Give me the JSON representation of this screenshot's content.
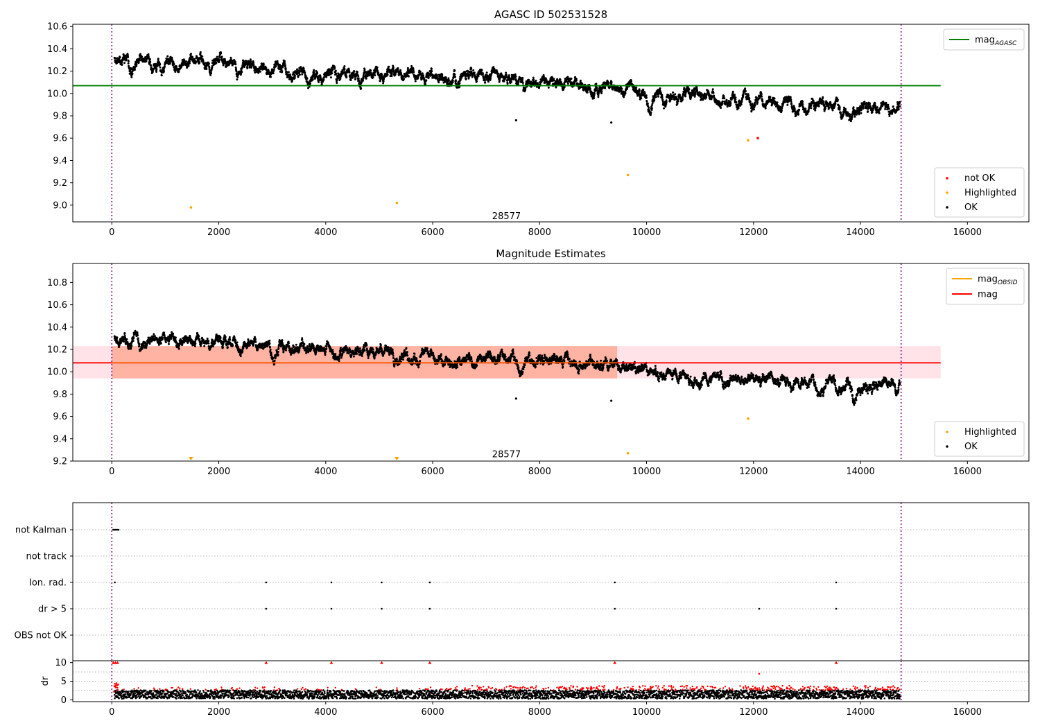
{
  "chart_data": [
    {
      "type": "scatter",
      "title": "AGASC ID 502531528",
      "xlim": [
        -730,
        17150
      ],
      "ylim": [
        8.85,
        10.62
      ],
      "xticks": [
        0,
        2000,
        4000,
        6000,
        8000,
        10000,
        12000,
        14000,
        16000
      ],
      "yticks": [
        9.0,
        9.2,
        9.4,
        9.6,
        9.8,
        10.0,
        10.2,
        10.4,
        10.6
      ],
      "hlines": [
        {
          "name": "mag_AGASC",
          "label_main": "mag",
          "label_sub": "AGASC",
          "y": 10.07,
          "x": [
            -730,
            15500
          ],
          "color": "#008000"
        }
      ],
      "vlines": [
        0,
        14760
      ],
      "annotations": [
        {
          "text": "28577",
          "x": 7380,
          "y": 8.9
        }
      ],
      "legend_upper": {
        "position": "upper right",
        "entries": [
          {
            "label": "mag",
            "sub": "AGASC",
            "color": "#008000",
            "kind": "line"
          }
        ]
      },
      "legend_lower": {
        "position": "lower right",
        "entries": [
          {
            "label": "not OK",
            "color": "#ff0000"
          },
          {
            "label": "Highlighted",
            "color": "#ffa500"
          },
          {
            "label": "OK",
            "color": "#000000"
          }
        ]
      },
      "series": [
        {
          "name": "OK",
          "color": "#000000",
          "trend": [
            [
              50,
              10.3
            ],
            [
              2000,
              10.28
            ],
            [
              4000,
              10.2
            ],
            [
              6000,
              10.17
            ],
            [
              8000,
              10.1
            ],
            [
              9500,
              10.05
            ],
            [
              10000,
              10.0
            ],
            [
              12000,
              9.95
            ],
            [
              13000,
              9.9
            ],
            [
              14000,
              9.87
            ],
            [
              14700,
              9.92
            ]
          ],
          "x": [
            7560,
            9340
          ],
          "y": [
            9.76,
            9.74
          ]
        },
        {
          "name": "Highlighted",
          "color": "#ffa500",
          "x": [
            1480,
            5330,
            9650,
            11900
          ],
          "y": [
            8.98,
            9.02,
            9.27,
            9.58
          ]
        },
        {
          "name": "not OK",
          "color": "#ff0000",
          "x": [
            12080
          ],
          "y": [
            9.6
          ]
        }
      ]
    },
    {
      "type": "scatter",
      "title": "Magnitude Estimates",
      "xlim": [
        -730,
        17150
      ],
      "ylim": [
        9.2,
        10.97
      ],
      "xticks": [
        0,
        2000,
        4000,
        6000,
        8000,
        10000,
        12000,
        14000,
        16000
      ],
      "yticks": [
        9.2,
        9.4,
        9.6,
        9.8,
        10.0,
        10.2,
        10.4,
        10.6,
        10.8
      ],
      "hlines": [
        {
          "name": "mag",
          "y": 10.08,
          "x": [
            -730,
            15500
          ],
          "color": "#ff0000"
        }
      ],
      "bands": [
        {
          "color": "#ff8c69",
          "x": [
            0,
            9450
          ],
          "y": [
            9.94,
            10.23
          ]
        },
        {
          "color": "#ffc0cb",
          "x": [
            -730,
            15500
          ],
          "y": [
            9.94,
            10.23
          ]
        }
      ],
      "segment_steps": [
        [
          0,
          10.08
        ],
        [
          4000,
          10.08
        ],
        [
          9450,
          10.08
        ]
      ],
      "vlines": [
        0,
        14760
      ],
      "annotations": [
        {
          "text": "28577",
          "x": 7380,
          "y": 9.26
        }
      ],
      "legend_upper": {
        "position": "upper right",
        "entries": [
          {
            "label": "mag",
            "sub": "OBSID",
            "color": "#ffa500",
            "kind": "line"
          },
          {
            "label": "mag",
            "color": "#ff0000",
            "kind": "line"
          }
        ]
      },
      "legend_lower": {
        "position": "lower right",
        "entries": [
          {
            "label": "Highlighted",
            "color": "#ffa500"
          },
          {
            "label": "OK",
            "color": "#000000"
          }
        ]
      },
      "series": [
        {
          "name": "OK",
          "color": "#000000",
          "trend": [
            [
              50,
              10.3
            ],
            [
              2000,
              10.28
            ],
            [
              4000,
              10.2
            ],
            [
              6000,
              10.17
            ],
            [
              8000,
              10.1
            ],
            [
              9500,
              10.05
            ],
            [
              10000,
              10.0
            ],
            [
              12000,
              9.95
            ],
            [
              13000,
              9.9
            ],
            [
              14000,
              9.87
            ],
            [
              14700,
              9.92
            ]
          ],
          "x": [
            7560,
            9340
          ],
          "y": [
            9.76,
            9.74
          ]
        },
        {
          "name": "Highlighted",
          "color": "#ffa500",
          "x": [
            1480,
            5330,
            9650,
            11900
          ],
          "y": [
            9.22,
            9.22,
            9.27,
            9.58
          ]
        }
      ]
    },
    {
      "type": "scatter",
      "xlim": [
        -730,
        17150
      ],
      "categories": [
        "not Kalman",
        "not track",
        "Ion. rad.",
        "dr > 5",
        "OBS not OK"
      ],
      "vlines": [
        0,
        14760
      ],
      "series": [
        {
          "name": "not Kalman",
          "color": "#000000",
          "x": [
            0,
            20,
            40,
            60,
            80,
            100
          ],
          "y": [
            "not Kalman",
            "not Kalman",
            "not Kalman",
            "not Kalman",
            "not Kalman",
            "not Kalman"
          ]
        },
        {
          "name": "Ion. rad.",
          "color": "#000000",
          "x": [
            30,
            2860,
            4080,
            5020,
            5920,
            9380,
            13520
          ],
          "y": [
            "Ion. rad.",
            "Ion. rad.",
            "Ion. rad.",
            "Ion. rad.",
            "Ion. rad.",
            "Ion. rad.",
            "Ion. rad."
          ]
        },
        {
          "name": "dr > 5",
          "color": "#000000",
          "x": [
            2860,
            4080,
            5020,
            5920,
            9380,
            12080,
            13520
          ],
          "y": [
            "dr > 5",
            "dr > 5",
            "dr > 5",
            "dr > 5",
            "dr > 5",
            "dr > 5",
            "dr > 5"
          ]
        }
      ]
    },
    {
      "type": "scatter",
      "ylabel": "dr",
      "xlim": [
        -730,
        17150
      ],
      "ylim": [
        -0.5,
        10.5
      ],
      "xticks": [
        0,
        2000,
        4000,
        6000,
        8000,
        10000,
        12000,
        14000,
        16000
      ],
      "yticks": [
        0,
        5,
        10
      ],
      "hlines_dotted": [
        2.5,
        5,
        7.5
      ],
      "vlines": [
        0,
        14760
      ],
      "series": [
        {
          "name": "dr",
          "color": "#000000",
          "baseline": [
            0.3,
            2.6
          ]
        },
        {
          "name": "dr > 5 (clipped)",
          "color": "#ff0000",
          "x": [
            0,
            40,
            80,
            2860,
            4080,
            5020,
            5920,
            9380,
            12080,
            13520
          ],
          "y": [
            10,
            10,
            10,
            10,
            10,
            10,
            10,
            10,
            7,
            10
          ]
        }
      ]
    }
  ]
}
